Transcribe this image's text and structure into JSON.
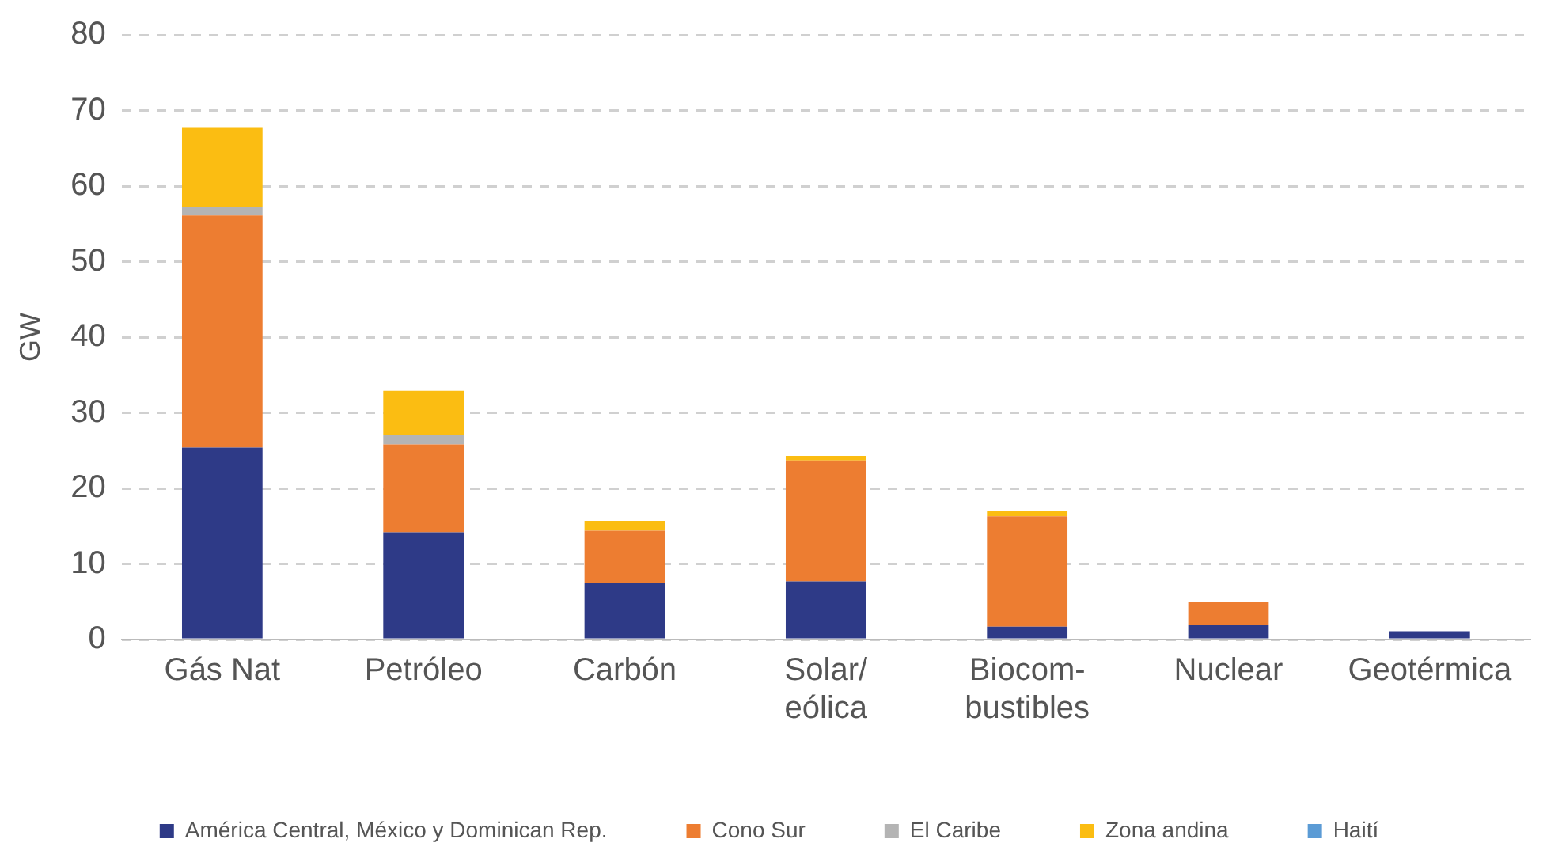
{
  "chart_data": {
    "type": "bar",
    "stacked": true,
    "ylabel": "GW",
    "categories": [
      "Gás Nat",
      "Petróleo",
      "Carbón",
      "Solar/\neólica",
      "Biocom-\nbustibles",
      "Nuclear",
      "Geotérmica"
    ],
    "series": [
      {
        "name": "América Central, México y Dominican Rep.",
        "color": "#2e3a87",
        "values": [
          25.4,
          14.2,
          7.5,
          7.7,
          1.7,
          1.9,
          1.1
        ]
      },
      {
        "name": "Cono Sur",
        "color": "#ed7d31",
        "values": [
          30.7,
          11.6,
          6.9,
          16.0,
          14.6,
          3.1,
          null
        ]
      },
      {
        "name": "El Caribe",
        "color": "#b4b4b4",
        "values": [
          1.1,
          1.3,
          null,
          null,
          null,
          null,
          null
        ]
      },
      {
        "name": "Zona andina",
        "color": "#fbbd12",
        "values": [
          10.5,
          5.8,
          1.3,
          0.6,
          0.7,
          null,
          null
        ]
      },
      {
        "name": "Haití",
        "color": "#5b9bd5",
        "values": [
          null,
          null,
          null,
          null,
          null,
          null,
          null
        ]
      }
    ],
    "ylim": [
      0,
      80
    ],
    "yticks": [
      0,
      10,
      20,
      30,
      40,
      50,
      60,
      70,
      80
    ],
    "grid": "y",
    "legend": "bottom"
  }
}
